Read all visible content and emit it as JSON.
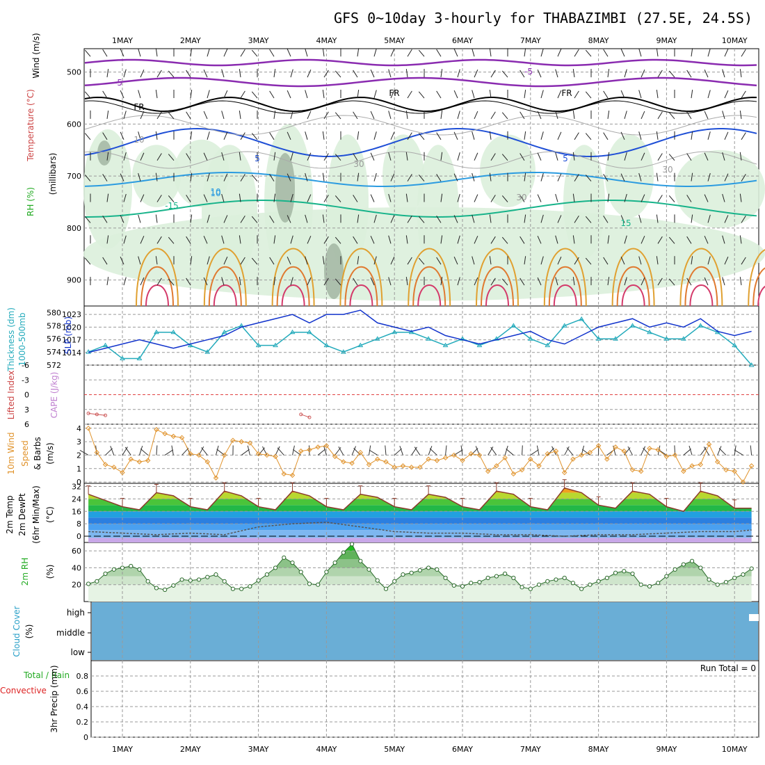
{
  "title": "GFS 0~10day 3-hourly for THABAZIMBI (27.5E, 24.5S)",
  "colors": {
    "dewpoint_dash": "#555555",
    "thickness": "#22aabb",
    "slp": "#1133cc",
    "wind": "#e0922a",
    "rh_fill": "#7cc47c",
    "cloud": "#6aaed6",
    "lifted_zero": "#e04040",
    "cape": "#cc5555",
    "grid": "#999999"
  },
  "x_axis": {
    "labels": [
      "1MAY",
      "2MAY",
      "3MAY",
      "4MAY",
      "5MAY",
      "6MAY",
      "7MAY",
      "8MAY",
      "9MAY",
      "10MAY"
    ]
  },
  "panels": {
    "upper_air": {
      "ylabels": [
        "Wind (m/s)",
        "Temperature (°C)",
        "RH (%)",
        "(millibars)"
      ],
      "ticks": [
        "500",
        "600",
        "700",
        "800",
        "900"
      ],
      "contour_labels": [
        "-5",
        "-5",
        "FR",
        "FR",
        "FR",
        "5",
        "5",
        "10",
        "-15",
        "15",
        "10",
        "30",
        "30",
        "30",
        "10"
      ]
    },
    "thickness_slp": {
      "ylabels": [
        "Thickness (dm)",
        "1000-500mb",
        "SLP (mb)"
      ],
      "thickness_ticks": [
        "580",
        "578",
        "576",
        "574",
        "572"
      ],
      "slp_ticks": [
        "1023",
        "1020",
        "1017",
        "1014"
      ]
    },
    "lifted_cape": {
      "ylabels": [
        "Lifted Index",
        "CAPE (J/kg)"
      ],
      "ticks": [
        "-6",
        "-3",
        "0",
        "3",
        "6"
      ]
    },
    "wind10m": {
      "ylabels": [
        "10m Wind",
        "Speed",
        "& Barbs",
        "(m/s)"
      ],
      "ticks": [
        "4",
        "3",
        "2",
        "1",
        "0"
      ]
    },
    "temp2m": {
      "ylabels": [
        "2m Temp",
        "2m DewPt",
        "(6hr Min/Max)",
        "(°C)"
      ],
      "ticks": [
        "32",
        "24",
        "16",
        "8",
        "0"
      ]
    },
    "rh2m": {
      "ylabels": [
        "2m RH",
        "(%)"
      ],
      "ticks": [
        "60",
        "40",
        "20"
      ]
    },
    "cloud": {
      "ylabels": [
        "Cloud Cover",
        "(%)"
      ],
      "ticks": [
        "high",
        "middle",
        "low"
      ]
    },
    "precip": {
      "ylabels": [
        "Total / Rain",
        "Convective",
        "3hr Precip (mm)"
      ],
      "ticks": [
        "0.8",
        "0.6",
        "0.4",
        "0.2",
        "0"
      ],
      "run_total": "Run Total = 0"
    }
  },
  "chart_data": [
    {
      "type": "line",
      "name": "10m Wind Speed (m/s)",
      "x": [
        "30APR12",
        "30APR15",
        "30APR18",
        "30APR21",
        "1MAY00",
        "1MAY03",
        "1MAY06",
        "1MAY09",
        "1MAY12",
        "1MAY15",
        "1MAY18",
        "1MAY21",
        "2MAY00",
        "2MAY03",
        "2MAY06",
        "2MAY09",
        "2MAY12",
        "2MAY15",
        "2MAY18",
        "2MAY21",
        "3MAY00",
        "3MAY03",
        "3MAY06",
        "3MAY09",
        "3MAY12",
        "3MAY15",
        "3MAY18",
        "3MAY21",
        "4MAY00",
        "4MAY03",
        "4MAY06",
        "4MAY09",
        "4MAY12",
        "4MAY15",
        "4MAY18",
        "4MAY21",
        "5MAY00",
        "5MAY03",
        "5MAY06",
        "5MAY09",
        "5MAY12",
        "5MAY15",
        "5MAY18",
        "5MAY21",
        "6MAY00",
        "6MAY03",
        "6MAY06",
        "6MAY09",
        "6MAY12",
        "6MAY15",
        "6MAY18",
        "6MAY21",
        "7MAY00",
        "7MAY03",
        "7MAY06",
        "7MAY09",
        "7MAY12",
        "7MAY15",
        "7MAY18",
        "7MAY21",
        "8MAY00",
        "8MAY03",
        "8MAY06",
        "8MAY09",
        "8MAY12",
        "8MAY15",
        "8MAY18",
        "8MAY21",
        "9MAY00",
        "9MAY03",
        "9MAY06",
        "9MAY09",
        "9MAY12",
        "9MAY15",
        "9MAY18",
        "9MAY21",
        "10MAY00",
        "10MAY03",
        "10MAY06"
      ],
      "values": [
        4.0,
        2.2,
        1.3,
        1.1,
        0.7,
        1.7,
        1.5,
        1.6,
        3.9,
        3.6,
        3.4,
        3.3,
        2.1,
        2.0,
        1.5,
        0.3,
        2.0,
        3.1,
        3.0,
        2.9,
        2.1,
        2.0,
        1.9,
        0.6,
        0.5,
        2.3,
        2.4,
        2.6,
        2.7,
        1.9,
        1.5,
        1.4,
        2.2,
        1.3,
        1.7,
        1.5,
        1.1,
        1.2,
        1.1,
        1.1,
        1.7,
        1.6,
        1.8,
        2.0,
        1.6,
        2.1,
        2.0,
        0.8,
        1.2,
        1.8,
        0.6,
        0.9,
        1.7,
        1.2,
        2.1,
        2.3,
        0.7,
        1.7,
        2.0,
        2.2,
        2.7,
        1.7,
        2.6,
        2.3,
        0.9,
        0.8,
        2.5,
        2.4,
        1.9,
        2.0,
        0.8,
        1.2,
        1.3,
        2.8,
        1.5,
        0.9,
        0.8,
        0.0,
        1.2
      ],
      "ylim": [
        0,
        4
      ]
    },
    {
      "type": "line",
      "name": "SLP (mb)",
      "x": [
        "30APR12",
        "30APR18",
        "1MAY00",
        "1MAY06",
        "1MAY12",
        "1MAY18",
        "2MAY00",
        "2MAY06",
        "2MAY12",
        "2MAY18",
        "3MAY00",
        "3MAY06",
        "3MAY12",
        "3MAY18",
        "4MAY00",
        "4MAY06",
        "4MAY12",
        "4MAY18",
        "5MAY00",
        "5MAY06",
        "5MAY12",
        "5MAY18",
        "6MAY00",
        "6MAY06",
        "6MAY12",
        "6MAY18",
        "7MAY00",
        "7MAY06",
        "7MAY12",
        "7MAY18",
        "8MAY00",
        "8MAY06",
        "8MAY12",
        "8MAY18",
        "9MAY00",
        "9MAY06",
        "9MAY12",
        "9MAY18",
        "10MAY00",
        "10MAY06"
      ],
      "values": [
        1014,
        1015,
        1016,
        1017,
        1016,
        1015,
        1016,
        1017,
        1018,
        1020,
        1021,
        1022,
        1023,
        1021,
        1023,
        1023,
        1024,
        1021,
        1020,
        1019,
        1020,
        1018,
        1017,
        1016,
        1017,
        1018,
        1019,
        1017,
        1016,
        1018,
        1020,
        1021,
        1022,
        1020,
        1021,
        1020,
        1022,
        1019,
        1018,
        1019
      ],
      "ylim": [
        1011,
        1025
      ]
    },
    {
      "type": "line",
      "name": "1000-500mb Thickness (dm)",
      "x": [
        "30APR12",
        "30APR18",
        "1MAY00",
        "1MAY06",
        "1MAY12",
        "1MAY18",
        "2MAY00",
        "2MAY06",
        "2MAY12",
        "2MAY18",
        "3MAY00",
        "3MAY06",
        "3MAY12",
        "3MAY18",
        "4MAY00",
        "4MAY06",
        "4MAY12",
        "4MAY18",
        "5MAY00",
        "5MAY06",
        "5MAY12",
        "5MAY18",
        "6MAY00",
        "6MAY06",
        "6MAY12",
        "6MAY18",
        "7MAY00",
        "7MAY06",
        "7MAY12",
        "7MAY18",
        "8MAY00",
        "8MAY06",
        "8MAY12",
        "8MAY18",
        "9MAY00",
        "9MAY06",
        "9MAY12",
        "9MAY18",
        "10MAY00",
        "10MAY06"
      ],
      "values": [
        574,
        575,
        573,
        573,
        577,
        577,
        575,
        574,
        577,
        578,
        575,
        575,
        577,
        577,
        575,
        574,
        575,
        576,
        577,
        577,
        576,
        575,
        576,
        575,
        576,
        578,
        576,
        575,
        578,
        579,
        576,
        576,
        578,
        577,
        576,
        576,
        578,
        577,
        575,
        572
      ],
      "ylim": [
        572,
        581
      ]
    },
    {
      "type": "area",
      "name": "2m Temp (°C)",
      "x": [
        "30APR12",
        "30APR18",
        "1MAY00",
        "1MAY06",
        "1MAY12",
        "1MAY18",
        "2MAY00",
        "2MAY06",
        "2MAY12",
        "2MAY18",
        "3MAY00",
        "3MAY06",
        "3MAY12",
        "3MAY18",
        "4MAY00",
        "4MAY06",
        "4MAY12",
        "4MAY18",
        "5MAY00",
        "5MAY06",
        "5MAY12",
        "5MAY18",
        "6MAY00",
        "6MAY06",
        "6MAY12",
        "6MAY18",
        "7MAY00",
        "7MAY06",
        "7MAY12",
        "7MAY18",
        "8MAY00",
        "8MAY06",
        "8MAY12",
        "8MAY18",
        "9MAY00",
        "9MAY06",
        "9MAY12",
        "9MAY18",
        "10MAY00",
        "10MAY06"
      ],
      "values": [
        27,
        23,
        19,
        17,
        28,
        26,
        19,
        17,
        29,
        26,
        19,
        17,
        29,
        26,
        19,
        17,
        27,
        25,
        19,
        17,
        27,
        25,
        19,
        17,
        29,
        27,
        19,
        17,
        31,
        28,
        20,
        18,
        29,
        27,
        19,
        16,
        29,
        26,
        18,
        18
      ],
      "ylim": [
        -4,
        34
      ]
    },
    {
      "type": "line",
      "name": "2m DewPt (°C)",
      "x": [
        "30APR12",
        "1MAY00",
        "1MAY12",
        "2MAY00",
        "2MAY12",
        "3MAY00",
        "3MAY12",
        "4MAY00",
        "4MAY12",
        "5MAY00",
        "5MAY12",
        "6MAY00",
        "6MAY12",
        "7MAY00",
        "7MAY12",
        "8MAY00",
        "8MAY12",
        "9MAY00",
        "9MAY12",
        "10MAY00",
        "10MAY06"
      ],
      "values": [
        3,
        2,
        1,
        2,
        1,
        6,
        8,
        9,
        6,
        3,
        2,
        2,
        1,
        1,
        0,
        1,
        1,
        2,
        3,
        3,
        4
      ],
      "ylim": [
        -4,
        34
      ]
    },
    {
      "type": "area",
      "name": "2m RH (%)",
      "x": [
        "30APR12",
        "30APR15",
        "30APR18",
        "30APR21",
        "1MAY00",
        "1MAY03",
        "1MAY06",
        "1MAY09",
        "1MAY12",
        "1MAY15",
        "1MAY18",
        "1MAY21",
        "2MAY00",
        "2MAY03",
        "2MAY06",
        "2MAY09",
        "2MAY12",
        "2MAY15",
        "2MAY18",
        "2MAY21",
        "3MAY00",
        "3MAY03",
        "3MAY06",
        "3MAY09",
        "3MAY12",
        "3MAY15",
        "3MAY18",
        "3MAY21",
        "4MAY00",
        "4MAY03",
        "4MAY06",
        "4MAY09",
        "4MAY12",
        "4MAY15",
        "4MAY18",
        "4MAY21",
        "5MAY00",
        "5MAY03",
        "5MAY06",
        "5MAY09",
        "5MAY12",
        "5MAY15",
        "5MAY18",
        "5MAY21",
        "6MAY00",
        "6MAY03",
        "6MAY06",
        "6MAY09",
        "6MAY12",
        "6MAY15",
        "6MAY18",
        "6MAY21",
        "7MAY00",
        "7MAY03",
        "7MAY06",
        "7MAY09",
        "7MAY12",
        "7MAY15",
        "7MAY18",
        "7MAY21",
        "8MAY00",
        "8MAY03",
        "8MAY06",
        "8MAY09",
        "8MAY12",
        "8MAY15",
        "8MAY18",
        "8MAY21",
        "9MAY00",
        "9MAY03",
        "9MAY06",
        "9MAY09",
        "9MAY12",
        "9MAY15",
        "9MAY18",
        "9MAY21",
        "10MAY00",
        "10MAY03",
        "10MAY06"
      ],
      "values": [
        21,
        24,
        33,
        38,
        40,
        42,
        38,
        24,
        16,
        14,
        19,
        26,
        25,
        26,
        29,
        32,
        24,
        15,
        15,
        18,
        25,
        32,
        40,
        52,
        46,
        35,
        21,
        20,
        35,
        46,
        58,
        68,
        48,
        38,
        25,
        15,
        24,
        32,
        34,
        37,
        40,
        38,
        28,
        19,
        18,
        22,
        23,
        28,
        30,
        33,
        28,
        17,
        15,
        20,
        24,
        26,
        28,
        22,
        15,
        20,
        24,
        28,
        34,
        36,
        33,
        20,
        18,
        22,
        30,
        38,
        44,
        48,
        40,
        26,
        20,
        23,
        28,
        32,
        39
      ],
      "ylim": [
        0,
        70
      ]
    },
    {
      "type": "line",
      "name": "Lifted Index",
      "x": [
        "30APR12",
        "30APR15",
        "30APR18",
        "3MAY15",
        "3MAY18"
      ],
      "values": [
        3.8,
        4.0,
        4.2,
        4.0,
        4.6
      ],
      "ylim": [
        -6,
        6
      ]
    },
    {
      "type": "bar",
      "name": "3hr Precip (mm)",
      "categories": [
        "1MAY",
        "2MAY",
        "3MAY",
        "4MAY",
        "5MAY",
        "6MAY",
        "7MAY",
        "8MAY",
        "9MAY",
        "10MAY"
      ],
      "values": [
        0,
        0,
        0,
        0,
        0,
        0,
        0,
        0,
        0,
        0
      ],
      "ylim": [
        0,
        1
      ]
    },
    {
      "type": "heatmap",
      "name": "Cloud Cover (%)",
      "rows": [
        "high",
        "middle",
        "low"
      ],
      "values": [
        100,
        100,
        100
      ]
    }
  ]
}
